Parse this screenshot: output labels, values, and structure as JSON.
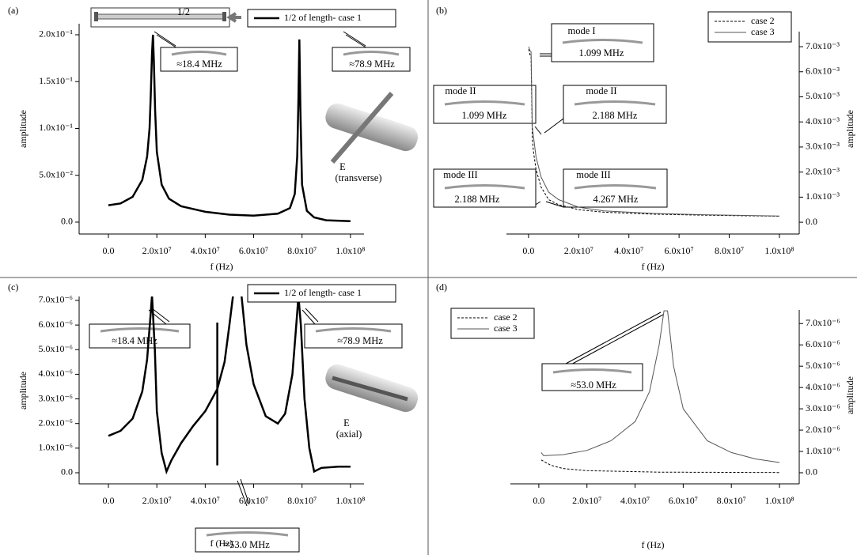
{
  "chart_data": [
    {
      "type": "line",
      "panel_label": "(a)",
      "x_label": "f (Hz)",
      "y_label": "amplitude",
      "xlim": [
        -12100000,
        105600000
      ],
      "ylim": [
        -0.0127,
        0.2118
      ],
      "xticks": [
        {
          "value": 0,
          "label": "0.0"
        },
        {
          "value": 20000000,
          "label": "2.0x10⁷"
        },
        {
          "value": 40000000,
          "label": "4.0x10⁷"
        },
        {
          "value": 60000000,
          "label": "6.0x10⁷"
        },
        {
          "value": 80000000,
          "label": "8.0x10⁷"
        },
        {
          "value": 100000000,
          "label": "1.0x10⁸"
        }
      ],
      "yticks": [
        {
          "value": 0,
          "label": "0.0"
        },
        {
          "value": 0.05,
          "label": "5.0x10⁻²"
        },
        {
          "value": 0.1,
          "label": "1.0x10⁻¹"
        },
        {
          "value": 0.15,
          "label": "1.5x10⁻¹"
        },
        {
          "value": 0.2,
          "label": "2.0x10⁻¹"
        }
      ],
      "legend_position": "upper right",
      "series": [
        {
          "name": "1/2 of length- case 1",
          "color": "#000000",
          "linestyle": "solid",
          "x": [
            0,
            5000000,
            10000000,
            14000000,
            16000000,
            17000000,
            17500000,
            18000000,
            18400000,
            18800000,
            19300000,
            20000000,
            22000000,
            25000000,
            30000000,
            40000000,
            50000000,
            60000000,
            70000000,
            75000000,
            77000000,
            78000000,
            78500000,
            78900000,
            79300000,
            80000000,
            82000000,
            85000000,
            90000000,
            100000000
          ],
          "values": [
            0.018,
            0.02,
            0.027,
            0.045,
            0.07,
            0.1,
            0.135,
            0.18,
            0.2,
            0.17,
            0.12,
            0.075,
            0.04,
            0.025,
            0.017,
            0.011,
            0.008,
            0.007,
            0.009,
            0.015,
            0.03,
            0.07,
            0.13,
            0.195,
            0.12,
            0.04,
            0.012,
            0.005,
            0.002,
            0.001
          ]
        }
      ],
      "annotations": [
        "1/2",
        "≈18.4 MHz",
        "≈78.9 MHz",
        "E",
        "(transverse)"
      ]
    },
    {
      "type": "line",
      "panel_label": "(b)",
      "x_label": "f (Hz)",
      "y_label": "amplitude",
      "xlim": [
        -8800000,
        107900000
      ],
      "y2lim": [
        -0.00047,
        0.0076
      ],
      "xticks": [
        {
          "value": 0,
          "label": "0.0"
        },
        {
          "value": 20000000,
          "label": "2.0x10⁷"
        },
        {
          "value": 40000000,
          "label": "4.0x10⁷"
        },
        {
          "value": 60000000,
          "label": "6.0x10⁷"
        },
        {
          "value": 80000000,
          "label": "8.0x10⁷"
        },
        {
          "value": 100000000,
          "label": "1.0x10⁸"
        }
      ],
      "y2ticks": [
        {
          "value": 0,
          "label": "0.0"
        },
        {
          "value": 0.001,
          "label": "1.0x10⁻³"
        },
        {
          "value": 0.002,
          "label": "2.0x10⁻³"
        },
        {
          "value": 0.003,
          "label": "3.0x10⁻³"
        },
        {
          "value": 0.004,
          "label": "4.0x10⁻³"
        },
        {
          "value": 0.005,
          "label": "5.0x10⁻³"
        },
        {
          "value": 0.006,
          "label": "6.0x10⁻³"
        },
        {
          "value": 0.007,
          "label": "7.0x10⁻³"
        }
      ],
      "legend_position": "upper right",
      "series": [
        {
          "name": "case 2",
          "color": "#000000",
          "linestyle": "dashed",
          "axis": "y2",
          "x": [
            100000,
            500000,
            1000000,
            1500000,
            2000000,
            3000000,
            5000000,
            8000000,
            12000000,
            20000000,
            30000000,
            50000000,
            70000000,
            100000000
          ],
          "values": [
            0.0069,
            0.0067,
            0.0066,
            0.0033,
            0.0028,
            0.0021,
            0.0014,
            0.0009,
            0.0007,
            0.0005,
            0.0004,
            0.00032,
            0.00028,
            0.00024
          ]
        },
        {
          "name": "case 3",
          "color": "#555555",
          "linestyle": "solid",
          "axis": "y2",
          "x": [
            100000,
            500000,
            1000000,
            1500000,
            2000000,
            3000000,
            5000000,
            8000000,
            12000000,
            20000000,
            30000000,
            50000000,
            70000000,
            100000000
          ],
          "values": [
            0.007,
            0.00685,
            0.0068,
            0.0038,
            0.0034,
            0.0026,
            0.0018,
            0.0012,
            0.0009,
            0.0006,
            0.00045,
            0.00035,
            0.0003,
            0.00025
          ]
        }
      ],
      "annotations": [
        "mode I",
        "1.099  MHz",
        "mode II",
        "1.099  MHz",
        "mode II",
        "2.188 MHz",
        "mode III",
        "2.188 MHz",
        "mode III",
        "4.267 MHz"
      ]
    },
    {
      "type": "line",
      "panel_label": "(c)",
      "x_label": "f (Hz)",
      "y_label": "amplitude",
      "xlim": [
        -12100000,
        105600000
      ],
      "ylim": [
        -4.5e-07,
        7.16e-06
      ],
      "xticks": [
        {
          "value": 0,
          "label": "0.0"
        },
        {
          "value": 20000000,
          "label": "2.0x10⁷"
        },
        {
          "value": 40000000,
          "label": "4.0x10⁷"
        },
        {
          "value": 60000000,
          "label": "6.0x10⁷"
        },
        {
          "value": 80000000,
          "label": "8.0x10⁷"
        },
        {
          "value": 100000000,
          "label": "1.0x10⁸"
        }
      ],
      "yticks": [
        {
          "value": 0,
          "label": "0.0"
        },
        {
          "value": 1e-06,
          "label": "1.0x10⁻⁶"
        },
        {
          "value": 2e-06,
          "label": "2.0x10⁻⁶"
        },
        {
          "value": 3e-06,
          "label": "3.0x10⁻⁶"
        },
        {
          "value": 4e-06,
          "label": "4.0x10⁻⁶"
        },
        {
          "value": 5e-06,
          "label": "5.0x10⁻⁶"
        },
        {
          "value": 6e-06,
          "label": "6.0x10⁻⁶"
        },
        {
          "value": 7e-06,
          "label": "7.0x10⁻⁶"
        }
      ],
      "legend_position": "upper right",
      "series": [
        {
          "name": "1/2 of length- case 1",
          "color": "#000000",
          "linestyle": "solid",
          "x": [
            0,
            5000000,
            10000000,
            14000000,
            16000000,
            17500000,
            18000000,
            19200000,
            20000000,
            22000000,
            24000000,
            26000000,
            30000000,
            35000000,
            40000000,
            45000000,
            48000000,
            50000000,
            51500000,
            null,
            45000000,
            45000000,
            null,
            55000000,
            57000000,
            60000000,
            65000000,
            70000000,
            73000000,
            76000000,
            78000000,
            78500000,
            79500000,
            81000000,
            83000000,
            85000000,
            88000000,
            95000000,
            100000000
          ],
          "values": [
            1.5e-06,
            1.7e-06,
            2.2e-06,
            3.3e-06,
            4.6e-06,
            6.5e-06,
            7.2e-06,
            5e-06,
            2.5e-06,
            8e-07,
            5e-08,
            5e-07,
            1.2e-06,
            1.9e-06,
            2.5e-06,
            3.4e-06,
            4.5e-06,
            6e-06,
            7.2e-06,
            null,
            3e-07,
            6.1e-06,
            null,
            7.2e-06,
            5.2e-06,
            3.6e-06,
            2.3e-06,
            2e-06,
            2.4e-06,
            4e-06,
            6.5e-06,
            7.2e-06,
            6e-06,
            3e-06,
            1e-06,
            5e-08,
            2e-07,
            2.5e-07,
            2.5e-07
          ]
        }
      ],
      "annotations": [
        "≈18.4 MHz",
        "≈78.9 MHz",
        "≈53.0 MHz",
        "E",
        "(axial)"
      ]
    },
    {
      "type": "line",
      "panel_label": "(d)",
      "x_label": "f (Hz)",
      "y_label": "amplitude",
      "xlim": [
        -11800000,
        108200000
      ],
      "y2lim": [
        -5.2e-07,
        7.64e-06
      ],
      "xticks": [
        {
          "value": 0,
          "label": "0.0"
        },
        {
          "value": 20000000,
          "label": "2.0x10⁷"
        },
        {
          "value": 40000000,
          "label": "4.0x10⁷"
        },
        {
          "value": 60000000,
          "label": "6.0x10⁷"
        },
        {
          "value": 80000000,
          "label": "8.0x10⁷"
        },
        {
          "value": 100000000,
          "label": "1.0x10⁸"
        }
      ],
      "y2ticks": [
        {
          "value": 0,
          "label": "0.0"
        },
        {
          "value": 1e-06,
          "label": "1.0x10⁻⁶"
        },
        {
          "value": 2e-06,
          "label": "2.0x10⁻⁶"
        },
        {
          "value": 3e-06,
          "label": "3.0x10⁻⁶"
        },
        {
          "value": 4e-06,
          "label": "4.0x10⁻⁶"
        },
        {
          "value": 5e-06,
          "label": "5.0x10⁻⁶"
        },
        {
          "value": 6e-06,
          "label": "6.0x10⁻⁶"
        },
        {
          "value": 7e-06,
          "label": "7.0x10⁻⁶"
        }
      ],
      "legend_position": "upper left",
      "series": [
        {
          "name": "case 2",
          "color": "#000000",
          "linestyle": "dashed",
          "axis": "y2",
          "x": [
            1000000,
            5000000,
            10000000,
            20000000,
            50000000,
            100000000
          ],
          "values": [
            6e-07,
            3.5e-07,
            2e-07,
            1e-07,
            3e-08,
            1e-08
          ]
        },
        {
          "name": "case 3",
          "color": "#555555",
          "linestyle": "solid",
          "axis": "y2",
          "x": [
            1000000,
            2000000,
            10000000,
            20000000,
            30000000,
            40000000,
            46000000,
            50000000,
            52000000,
            53500000,
            56000000,
            60000000,
            70000000,
            80000000,
            90000000,
            100000000
          ],
          "values": [
            9.5e-07,
            8e-07,
            8.5e-07,
            1.05e-06,
            1.5e-06,
            2.4e-06,
            3.8e-06,
            6e-06,
            7.6e-06,
            7.6e-06,
            5e-06,
            3e-06,
            1.5e-06,
            9.5e-07,
            6.5e-07,
            4.8e-07
          ]
        }
      ],
      "annotations": [
        "≈53.0 MHz"
      ]
    }
  ]
}
